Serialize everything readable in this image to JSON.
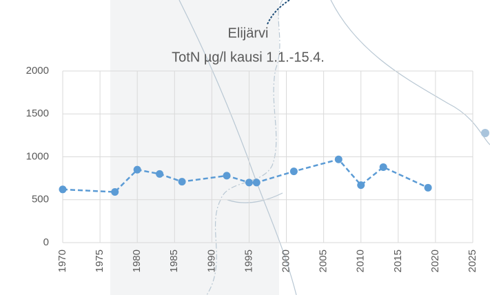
{
  "chart_data": {
    "type": "line",
    "title": "Elijärvi",
    "subtitle": "TotN µg/l kausi 1.1.-15.4.",
    "x": [
      1970,
      1977,
      1980,
      1983,
      1986,
      1992,
      1995,
      1996,
      2001,
      2007,
      2010,
      2013,
      2019
    ],
    "series": [
      {
        "name": "TotN",
        "color": "#5b9bd5",
        "values": [
          620,
          590,
          850,
          800,
          710,
          780,
          700,
          700,
          830,
          970,
          670,
          880,
          640
        ]
      }
    ],
    "xlim": [
      1970,
      2025
    ],
    "xticks": [
      1970,
      1975,
      1980,
      1985,
      1990,
      1995,
      2000,
      2005,
      2010,
      2015,
      2020,
      2025
    ],
    "ylim": [
      0,
      2000
    ],
    "yticks": [
      0,
      500,
      1000,
      1500,
      2000
    ],
    "grid": true
  }
}
